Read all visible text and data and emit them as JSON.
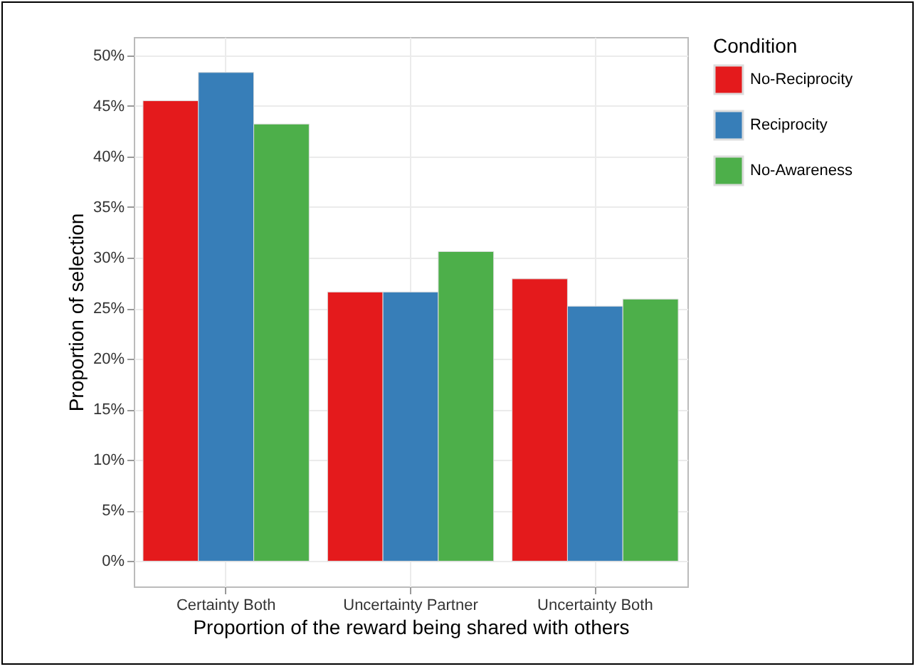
{
  "chart_data": {
    "type": "bar",
    "xlabel": "Proportion of the reward being shared with others",
    "ylabel": "Proportion of selection",
    "legend_title": "Condition",
    "categories": [
      "Certainty Both",
      "Uncertainty Partner",
      "Uncertainty Both"
    ],
    "series": [
      {
        "name": "No-Reciprocity",
        "color": "#e41a1c",
        "values": [
          45.5,
          26.6,
          27.9
        ]
      },
      {
        "name": "Reciprocity",
        "color": "#377eb8",
        "values": [
          48.3,
          26.6,
          25.2
        ]
      },
      {
        "name": "No-Awareness",
        "color": "#4daf4a",
        "values": [
          43.2,
          30.6,
          25.9
        ]
      }
    ],
    "ylim": [
      -2.5,
      51.8
    ],
    "yticks": [
      {
        "value": 0,
        "label": "0%"
      },
      {
        "value": 5,
        "label": "5%"
      },
      {
        "value": 10,
        "label": "10%"
      },
      {
        "value": 15,
        "label": "15%"
      },
      {
        "value": 20,
        "label": "20%"
      },
      {
        "value": 25,
        "label": "25%"
      },
      {
        "value": 30,
        "label": "30%"
      },
      {
        "value": 35,
        "label": "35%"
      },
      {
        "value": 40,
        "label": "40%"
      },
      {
        "value": 45,
        "label": "45%"
      },
      {
        "value": 50,
        "label": "50%"
      }
    ],
    "grid": true,
    "legend": "right"
  }
}
